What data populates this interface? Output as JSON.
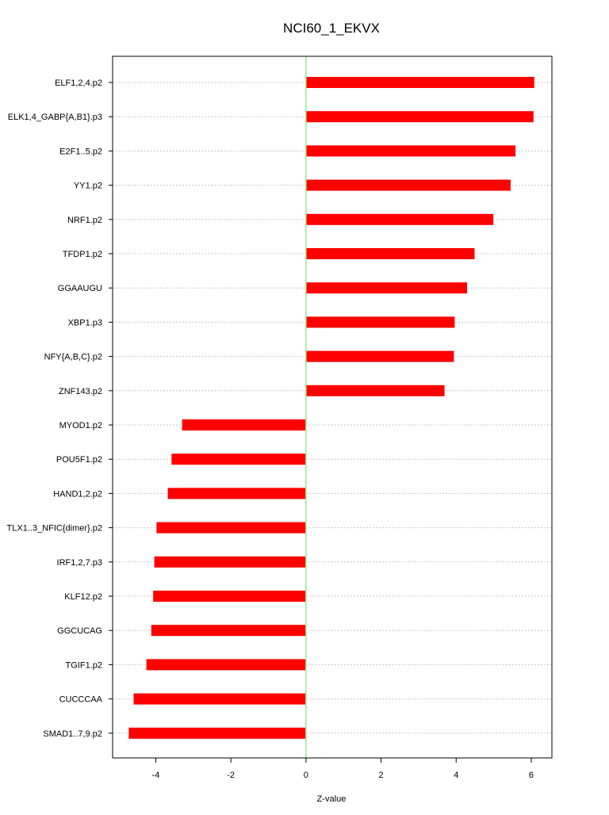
{
  "chart_data": {
    "type": "bar",
    "orientation": "horizontal",
    "title": "NCI60_1_EKVX",
    "xlabel": "Z-value",
    "ylabel": "",
    "xlim": [
      -5.15,
      6.55
    ],
    "xticks": [
      -4,
      -2,
      0,
      2,
      4,
      6
    ],
    "xtick_labels": [
      "-4",
      "-2",
      "0",
      "2",
      "4",
      "6"
    ],
    "grid": "horizontal dotted",
    "zero_line_color": "#90ee90",
    "bar_color": "#ff0000",
    "categories": [
      "ELF1,2,4.p2",
      "ELK1,4_GABP{A,B1}.p3",
      "E2F1..5.p2",
      "YY1.p2",
      "NRF1.p2",
      "TFDP1.p2",
      "GGAAUGU",
      "XBP1.p3",
      "NFY{A,B,C}.p2",
      "ZNF143.p2",
      "MYOD1.p2",
      "POU5F1.p2",
      "HAND1,2.p2",
      "TLX1..3_NFIC{dimer}.p2",
      "IRF1,2,7.p3",
      "KLF12.p2",
      "GGCUCAG",
      "TGIF1.p2",
      "CUCCCAA",
      "SMAD1..7,9.p2"
    ],
    "values": [
      6.08,
      6.06,
      5.58,
      5.45,
      4.99,
      4.49,
      4.29,
      3.96,
      3.94,
      3.69,
      -3.3,
      -3.58,
      -3.68,
      -3.98,
      -4.04,
      -4.07,
      -4.12,
      -4.25,
      -4.59,
      -4.72
    ]
  }
}
